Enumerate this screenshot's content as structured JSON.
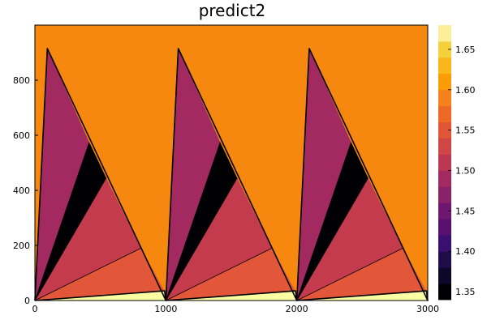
{
  "chart_data": {
    "type": "heatmap",
    "title": "predict2",
    "xlabel": "",
    "ylabel": "",
    "xlim": [
      0,
      3000
    ],
    "ylim": [
      0,
      1000
    ],
    "x_ticks": [
      "0",
      "1000",
      "2000",
      "3000"
    ],
    "y_ticks": [
      "0",
      "200",
      "400",
      "600",
      "800"
    ],
    "background_level": 1.6,
    "background_color": "#f6870f",
    "colorbar": {
      "ticks": [
        "1.35",
        "1.40",
        "1.45",
        "1.50",
        "1.55",
        "1.60",
        "1.65"
      ],
      "levels": [
        1.34,
        1.36,
        1.38,
        1.4,
        1.42,
        1.44,
        1.46,
        1.48,
        1.5,
        1.52,
        1.54,
        1.56,
        1.58,
        1.6,
        1.62,
        1.64,
        1.66,
        1.68
      ],
      "colors": [
        "#000004",
        "#0d0829",
        "#210c4a",
        "#3b0f70",
        "#57106e",
        "#6f176e",
        "#892269",
        "#a32a61",
        "#bc3754",
        "#d04545",
        "#e05536",
        "#ed6925",
        "#f6811c",
        "#fb9b06",
        "#fbb61a",
        "#f4d13c",
        "#fdef9a"
      ]
    },
    "regions": [
      {
        "name": "top-left wedge",
        "value": 1.49,
        "color": "#a32a61",
        "points": [
          [
            0,
            0
          ],
          [
            95,
            915
          ],
          [
            415,
            575
          ]
        ]
      },
      {
        "name": "black band",
        "value": 1.35,
        "color": "#000004",
        "points": [
          [
            0,
            0
          ],
          [
            415,
            575
          ],
          [
            545,
            445
          ]
        ]
      },
      {
        "name": "middle wedge",
        "value": 1.53,
        "color": "#c53b4e",
        "points": [
          [
            0,
            0
          ],
          [
            545,
            445
          ],
          [
            810,
            190
          ]
        ]
      },
      {
        "name": "lower wedge",
        "value": 1.57,
        "color": "#e2573a",
        "points": [
          [
            0,
            0
          ],
          [
            810,
            190
          ],
          [
            990,
            35
          ]
        ]
      },
      {
        "name": "bottom sliver",
        "value": 1.68,
        "color": "#fcfea4",
        "points": [
          [
            0,
            0
          ],
          [
            990,
            35
          ],
          [
            1000,
            0
          ]
        ]
      }
    ],
    "period": 1000,
    "repeats": 3,
    "outline": [
      [
        0,
        0
      ],
      [
        95,
        915
      ],
      [
        1000,
        0
      ],
      [
        990,
        35
      ],
      [
        0,
        0
      ]
    ],
    "internal_lines": [
      [
        [
          0,
          0
        ],
        [
          415,
          575
        ]
      ],
      [
        [
          0,
          0
        ],
        [
          545,
          445
        ]
      ],
      [
        [
          0,
          0
        ],
        [
          810,
          190
        ]
      ]
    ]
  }
}
